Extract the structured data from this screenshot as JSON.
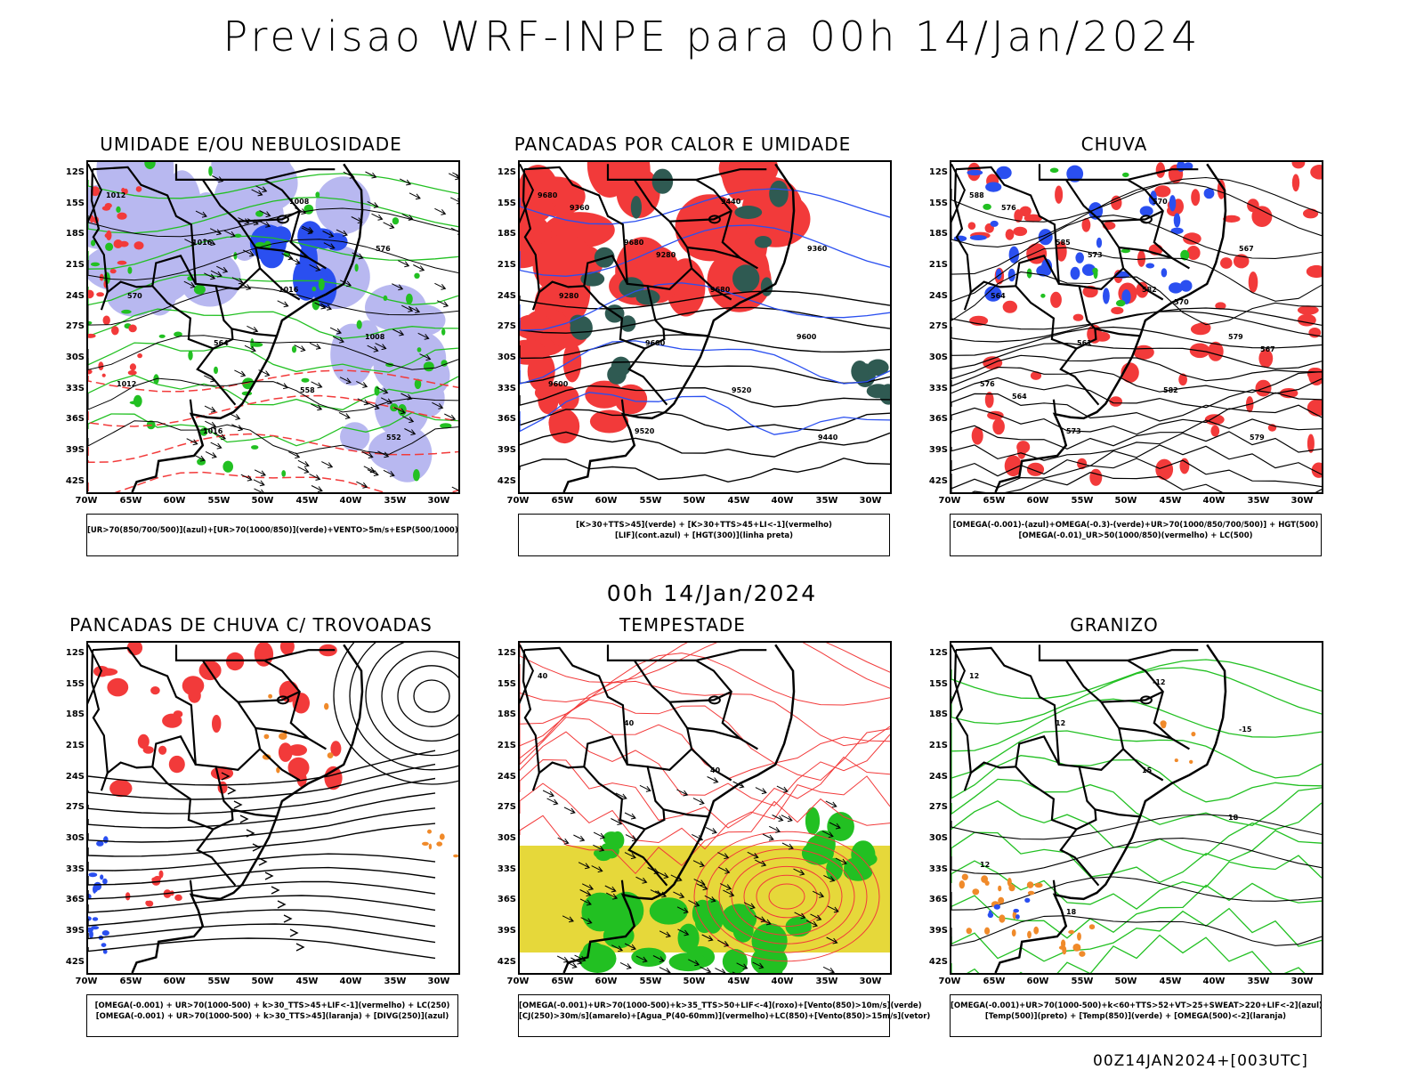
{
  "header": {
    "title": "Previsao WRF-INPE  para 00h 14/Jan/2024"
  },
  "mid_title": "00h 14/Jan/2024",
  "footer": "00Z14JAN2024+[003UTC]",
  "axes": {
    "lat": [
      "12S",
      "15S",
      "18S",
      "21S",
      "24S",
      "27S",
      "30S",
      "33S",
      "36S",
      "39S",
      "42S"
    ],
    "lon": [
      "70W",
      "65W",
      "60W",
      "55W",
      "50W",
      "45W",
      "40W",
      "35W",
      "30W"
    ]
  },
  "panels": [
    {
      "id": "umidade",
      "title": "UMIDADE E/OU NEBULOSIDADE",
      "caption": [
        "[UR>70(850/700/500)](azul)+[UR>70(1000/850)](verde)+VENTO>5m/s+ESP(500/1000)"
      ],
      "labels": [
        "1012",
        "1016",
        "1016",
        "1008",
        "1012",
        "1016",
        "1008",
        "576",
        "570",
        "564",
        "558",
        "552"
      ]
    },
    {
      "id": "pancadas-calor",
      "title": "PANCADAS POR CALOR E UMIDADE",
      "caption": [
        "[K>30+TTS>45](verde) + [K>30+TTS>45+LI<-1](vermelho)",
        "[LIF](cont.azul) + [HGT(300)](linha preta)"
      ],
      "labels": [
        "9680",
        "9680",
        "9680",
        "9600",
        "9600",
        "9520",
        "9440",
        "9360",
        "9280",
        "9600",
        "9520",
        "9440",
        "9360",
        "9280"
      ]
    },
    {
      "id": "chuva",
      "title": "CHUVA",
      "caption": [
        "[OMEGA(-0.001)-(azul)+OMEGA(-0.3)-(verde)+UR>70(1000/850/700/500)] + HGT(500)",
        "[OMEGA(-0.01)_UR>50(1000/850)(vermelho) + LC(500)"
      ],
      "labels": [
        "588",
        "585",
        "582",
        "579",
        "576",
        "573",
        "570",
        "567",
        "564",
        "561",
        "582",
        "579",
        "576",
        "573",
        "570",
        "567",
        "564"
      ]
    },
    {
      "id": "pancadas-trovoadas",
      "title": "PANCADAS DE CHUVA C/ TROVOADAS",
      "caption": [
        "[OMEGA(-0.001) + UR>70(1000-500) + k>30_TTS>45+LIF<-1](vermelho) + LC(250)",
        "[OMEGA(-0.001) + UR>70(1000-500) + k>30_TTS>45](laranja) + [DIVG(250)](azul)"
      ],
      "labels": []
    },
    {
      "id": "tempestade",
      "title": "TEMPESTADE",
      "caption": [
        "[OMEGA(-0.001)+UR>70(1000-500)+k>35_TTS>50+LIF<-4](roxo)+[Vento(850)>10m/s](verde)",
        "[CJ(250)>30m/s](amarelo)+[Agua_P(40-60mm)](vermelho)+LC(850)+[Vento(850)>15m/s](vetor)"
      ],
      "labels": [
        "40",
        "40",
        "40"
      ]
    },
    {
      "id": "granizo",
      "title": "GRANIZO",
      "caption": [
        "[OMEGA(-0.001)+UR>70(1000-500)+k<60+TTS>52+VT>25+SWEAT>220+LIF<-2](azul)",
        "[Temp(500)](preto) + [Temp(850)](verde) + [OMEGA(500)<-2](laranja)"
      ],
      "labels": [
        "12",
        "12",
        "15",
        "18",
        "12",
        "18",
        "-12",
        "-15"
      ]
    }
  ],
  "colors": {
    "red": "#f23a3a",
    "green": "#22c022",
    "blue": "#2a4ff0",
    "lavender": "#b8b8f0",
    "yellow": "#e6d83a",
    "darkgreen": "#2f5a52",
    "orange": "#f08a2a",
    "purple": "#8a3ad0"
  }
}
